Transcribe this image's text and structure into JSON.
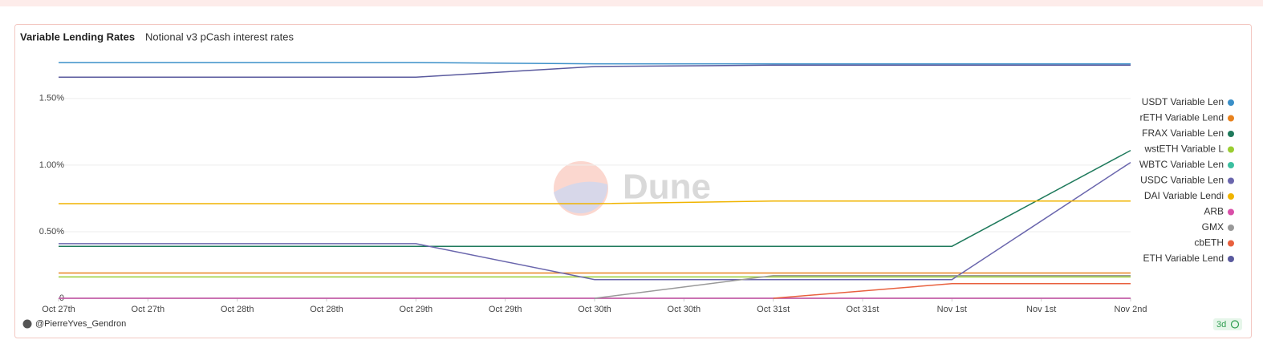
{
  "chart_data": {
    "type": "line",
    "title": "Variable Lending Rates",
    "subtitle": "Notional v3 pCash interest rates",
    "watermark": "Dune",
    "author": "@PierreYves_Gendron",
    "badge": "3d",
    "x": [
      "Oct 27th",
      "Oct 28th",
      "Oct 29th",
      "Oct 30th",
      "Oct 31st",
      "Nov 1st",
      "Nov 2nd"
    ],
    "xlim": [
      0,
      6
    ],
    "xticks": [
      {
        "value": 0,
        "label": "Oct 27th"
      },
      {
        "value": 0.5,
        "label": "Oct 27th"
      },
      {
        "value": 1,
        "label": "Oct 28th"
      },
      {
        "value": 1.5,
        "label": "Oct 28th"
      },
      {
        "value": 2,
        "label": "Oct 29th"
      },
      {
        "value": 2.5,
        "label": "Oct 29th"
      },
      {
        "value": 3,
        "label": "Oct 30th"
      },
      {
        "value": 3.5,
        "label": "Oct 30th"
      },
      {
        "value": 4,
        "label": "Oct 31st"
      },
      {
        "value": 4.5,
        "label": "Oct 31st"
      },
      {
        "value": 5,
        "label": "Nov 1st"
      },
      {
        "value": 5.5,
        "label": "Nov 1st"
      },
      {
        "value": 6,
        "label": "Nov 2nd"
      }
    ],
    "ylim": [
      0,
      1.8
    ],
    "yticks": [
      0,
      {
        "value": 0.5,
        "label": "0.50%"
      },
      {
        "value": 1.0,
        "label": "1.00%"
      },
      {
        "value": 1.5,
        "label": "1.50%"
      }
    ],
    "grid": true,
    "legend": "right",
    "series": [
      {
        "name": "USDT Variable Len",
        "color": "#3a8fc8",
        "values": [
          1.77,
          1.77,
          1.77,
          1.76,
          1.76,
          1.76,
          1.76
        ]
      },
      {
        "name": "rETH Variable Lend",
        "color": "#e8821e",
        "values": [
          0.19,
          0.19,
          0.19,
          0.19,
          0.19,
          0.19,
          0.19
        ]
      },
      {
        "name": "FRAX Variable Len",
        "color": "#1f7a5c",
        "values": [
          0.39,
          0.39,
          0.39,
          0.39,
          0.39,
          0.39,
          1.11
        ]
      },
      {
        "name": "wstETH Variable L",
        "color": "#9acd32",
        "values": [
          0.16,
          0.16,
          0.16,
          0.16,
          0.16,
          0.16,
          0.16
        ]
      },
      {
        "name": "WBTC Variable Len",
        "color": "#3cbfa0",
        "values": [
          0,
          0,
          0,
          0,
          0,
          0,
          0
        ]
      },
      {
        "name": "USDC Variable Len",
        "color": "#6a66ad",
        "values": [
          0.41,
          0.41,
          0.41,
          0.14,
          0.14,
          0.14,
          1.02
        ]
      },
      {
        "name": "DAI Variable Lendi",
        "color": "#f0b400",
        "values": [
          0.71,
          0.71,
          0.71,
          0.71,
          0.73,
          0.73,
          0.73
        ]
      },
      {
        "name": "ARB",
        "color": "#d94fa8",
        "values": [
          0,
          0,
          0,
          0,
          0,
          0,
          0
        ]
      },
      {
        "name": "GMX",
        "color": "#999999",
        "values": [
          null,
          null,
          null,
          0,
          0.17,
          0.17,
          0.17
        ]
      },
      {
        "name": "cbETH",
        "color": "#e8603e",
        "values": [
          null,
          null,
          null,
          null,
          0,
          0.11,
          0.11
        ]
      },
      {
        "name": "ETH Variable Lend",
        "color": "#5a5a9e",
        "values": [
          1.66,
          1.66,
          1.66,
          1.74,
          1.75,
          1.75,
          1.75
        ]
      }
    ]
  }
}
